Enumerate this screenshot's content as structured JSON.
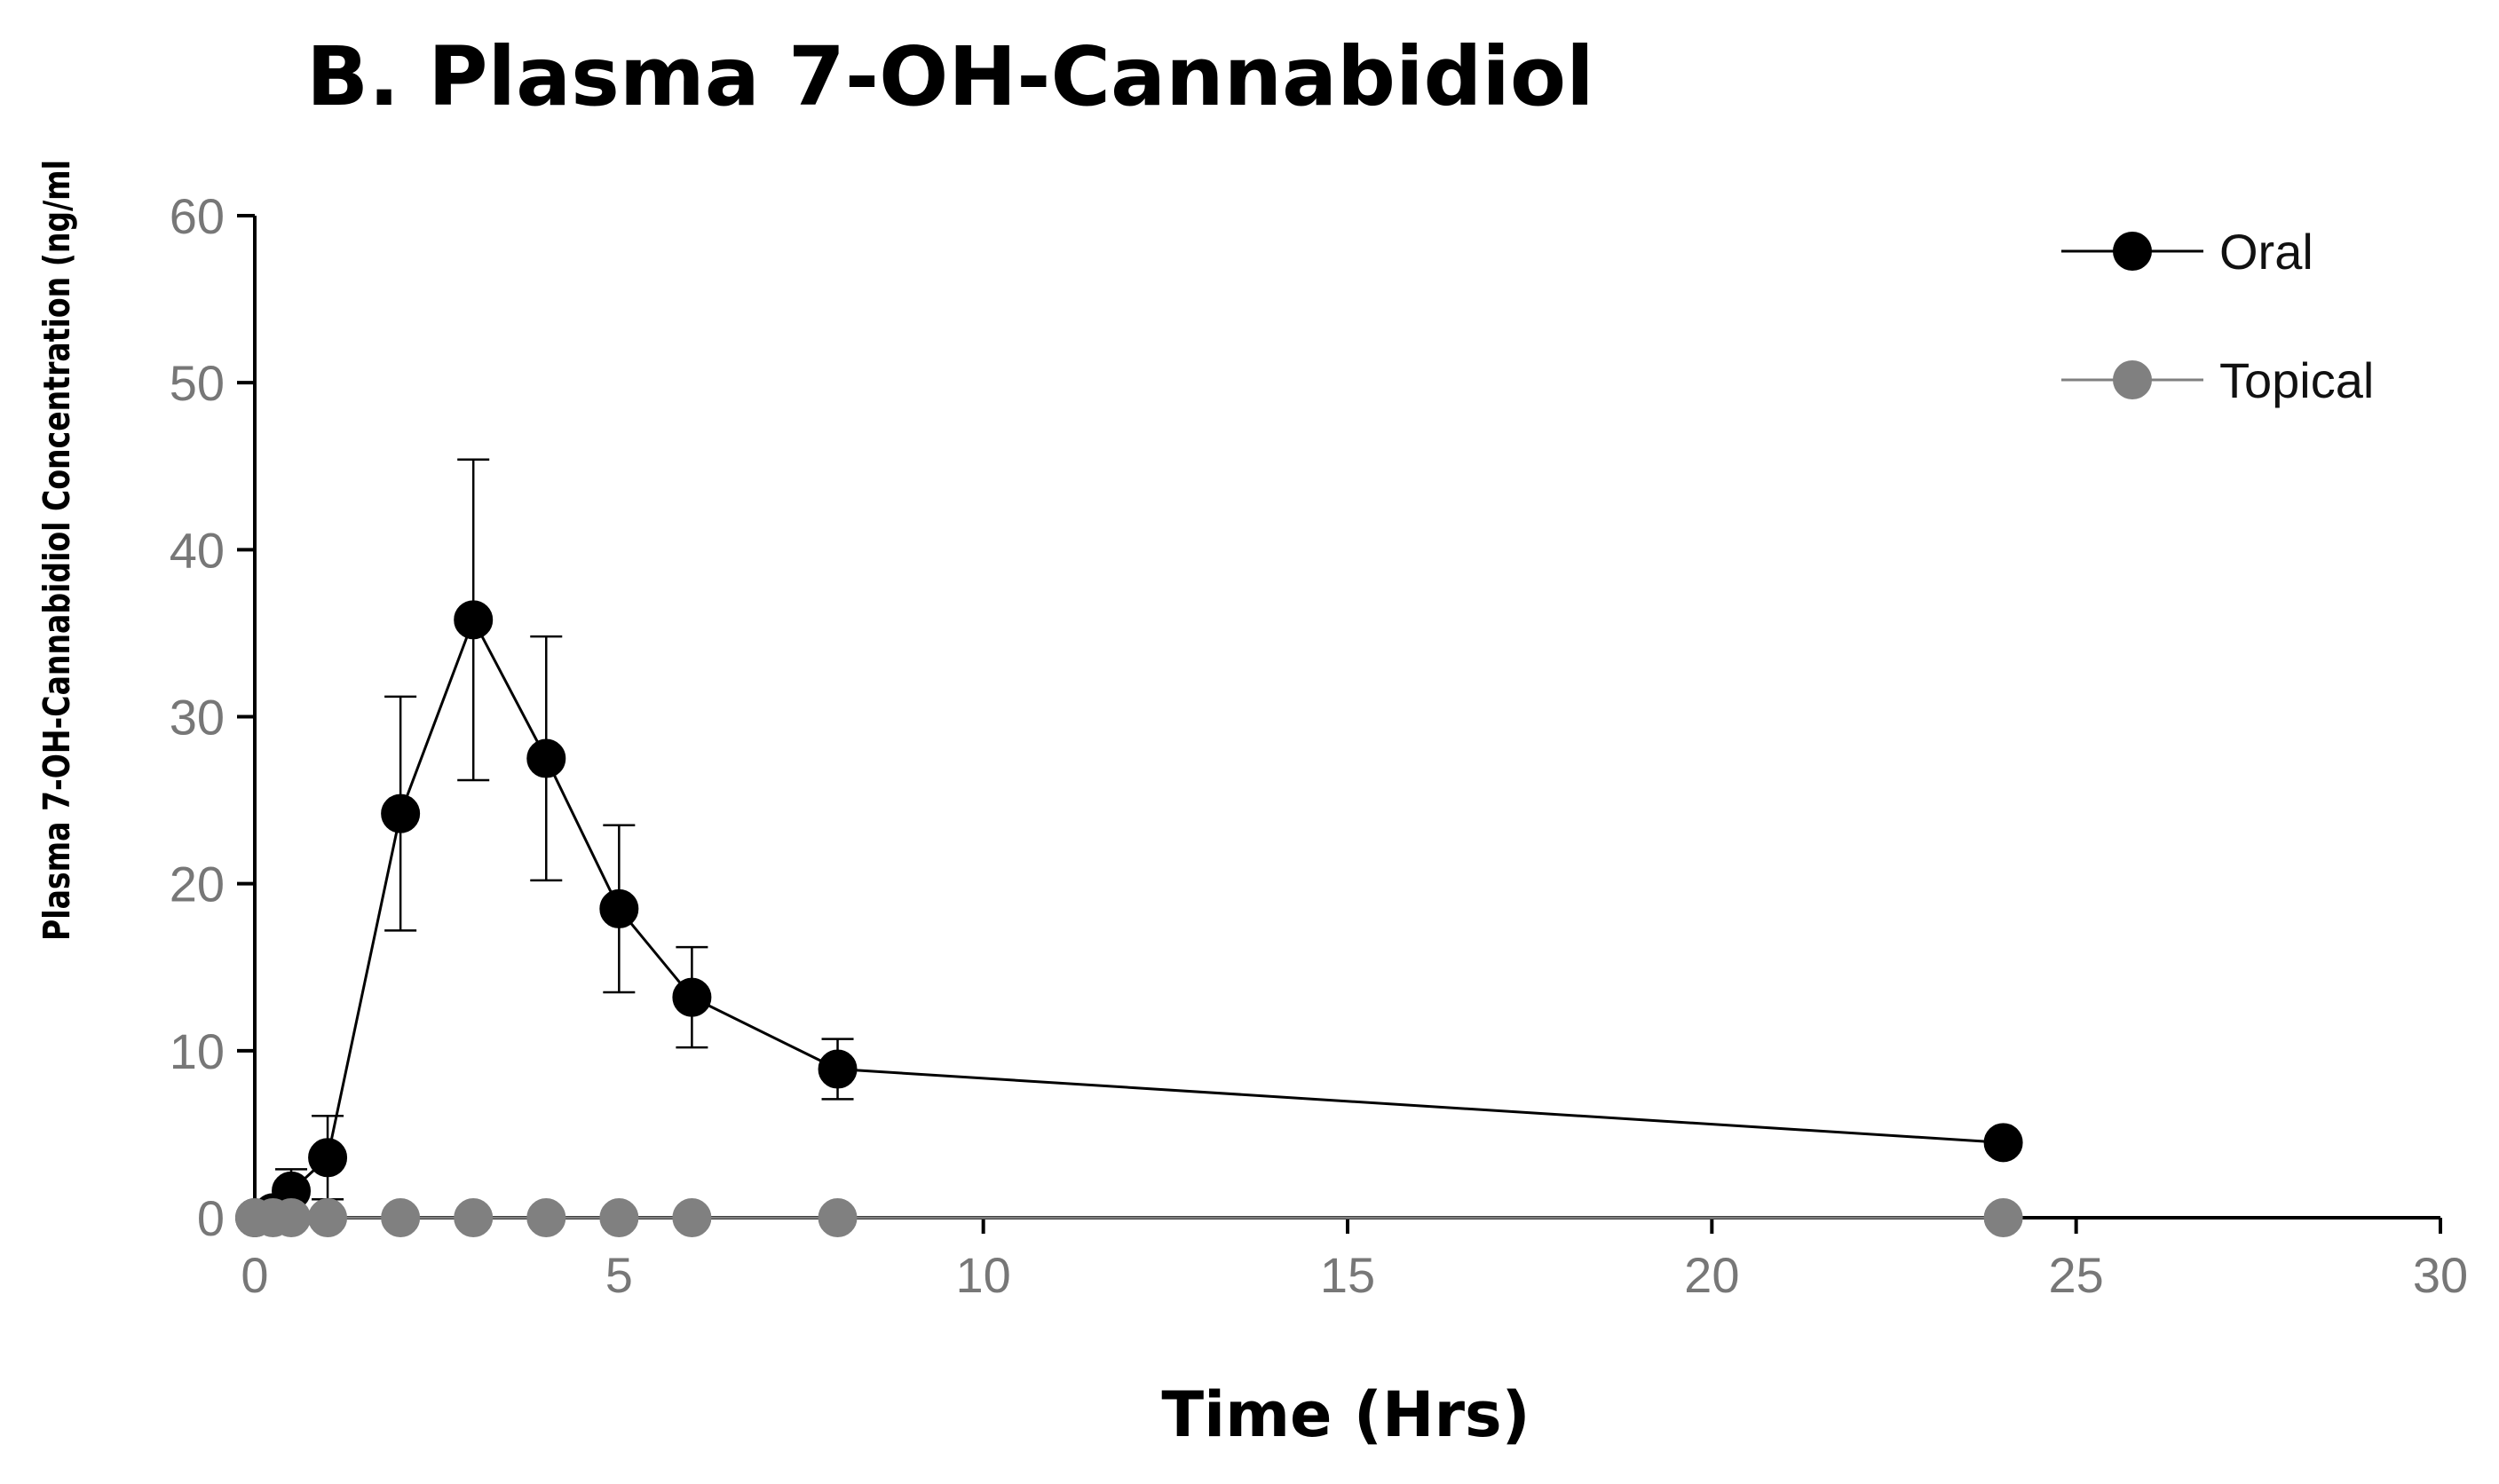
{
  "chart_data": {
    "type": "line",
    "title": "B. Plasma 7-OH-Cannabidiol",
    "xlabel": "Time (Hrs)",
    "ylabel": "Plasma 7-OH-Cannabidiol Concentration (ng/ml",
    "xlim": [
      0,
      30
    ],
    "ylim": [
      0,
      60
    ],
    "xticks": [
      0,
      5,
      10,
      15,
      20,
      25,
      30
    ],
    "yticks": [
      0,
      10,
      20,
      30,
      40,
      50,
      60
    ],
    "grid": false,
    "legend_position": "top-right",
    "series": [
      {
        "name": "Oral",
        "color": "#000000",
        "marker_color": "#000000",
        "line_color": "#000000",
        "points": [
          {
            "x": 0,
            "y": 0,
            "err": 0
          },
          {
            "x": 0.25,
            "y": 0.3,
            "err": 0.3
          },
          {
            "x": 0.5,
            "y": 1.6,
            "err": 1.3
          },
          {
            "x": 1,
            "y": 3.6,
            "err": 2.5
          },
          {
            "x": 2,
            "y": 24.2,
            "err": 7
          },
          {
            "x": 3,
            "y": 35.8,
            "err": 9.6
          },
          {
            "x": 4,
            "y": 27.5,
            "err": 7.3
          },
          {
            "x": 5,
            "y": 18.5,
            "err": 5
          },
          {
            "x": 6,
            "y": 13.2,
            "err": 3
          },
          {
            "x": 8,
            "y": 8.9,
            "err": 1.8
          },
          {
            "x": 24,
            "y": 4.5,
            "err": 0.5
          }
        ]
      },
      {
        "name": "Topical",
        "color": "#808080",
        "marker_color": "#808080",
        "line_color": "#808080",
        "points": [
          {
            "x": 0,
            "y": 0,
            "err": 0
          },
          {
            "x": 0.25,
            "y": 0,
            "err": 0
          },
          {
            "x": 0.5,
            "y": 0,
            "err": 0
          },
          {
            "x": 1,
            "y": 0,
            "err": 0
          },
          {
            "x": 2,
            "y": 0,
            "err": 0
          },
          {
            "x": 3,
            "y": 0,
            "err": 0
          },
          {
            "x": 4,
            "y": 0,
            "err": 0
          },
          {
            "x": 5,
            "y": 0,
            "err": 0
          },
          {
            "x": 6,
            "y": 0,
            "err": 0
          },
          {
            "x": 8,
            "y": 0,
            "err": 0
          },
          {
            "x": 24,
            "y": 0,
            "err": 0
          }
        ]
      }
    ]
  }
}
